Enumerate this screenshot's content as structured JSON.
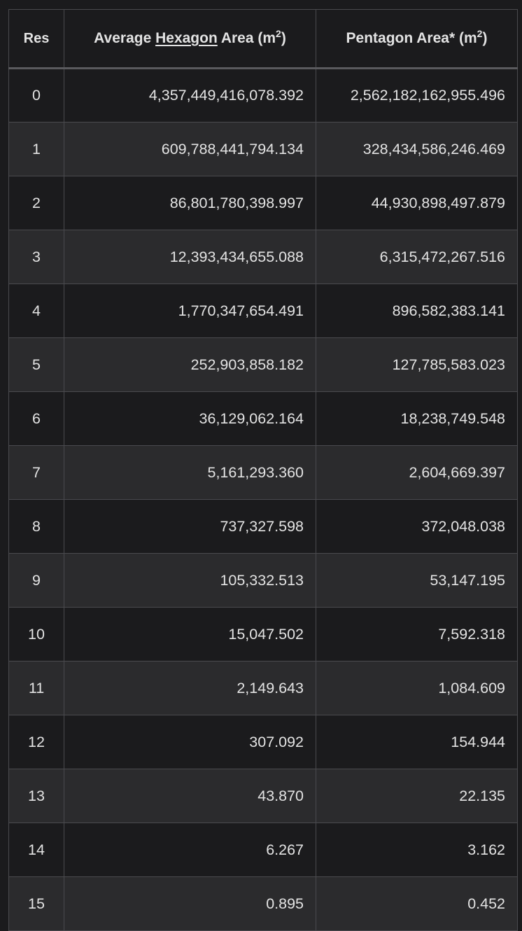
{
  "header": {
    "res": "Res",
    "hex_prefix": "Average ",
    "hex_word": "Hexagon",
    "hex_suffix": " Area (m",
    "pent_prefix": "Pentagon Area* (m",
    "sup": "2",
    "close": ")"
  },
  "rows": [
    {
      "res": "0",
      "hex": "4,357,449,416,078.392",
      "pent": "2,562,182,162,955.496"
    },
    {
      "res": "1",
      "hex": "609,788,441,794.134",
      "pent": "328,434,586,246.469"
    },
    {
      "res": "2",
      "hex": "86,801,780,398.997",
      "pent": "44,930,898,497.879"
    },
    {
      "res": "3",
      "hex": "12,393,434,655.088",
      "pent": "6,315,472,267.516"
    },
    {
      "res": "4",
      "hex": "1,770,347,654.491",
      "pent": "896,582,383.141"
    },
    {
      "res": "5",
      "hex": "252,903,858.182",
      "pent": "127,785,583.023"
    },
    {
      "res": "6",
      "hex": "36,129,062.164",
      "pent": "18,238,749.548"
    },
    {
      "res": "7",
      "hex": "5,161,293.360",
      "pent": "2,604,669.397"
    },
    {
      "res": "8",
      "hex": "737,327.598",
      "pent": "372,048.038"
    },
    {
      "res": "9",
      "hex": "105,332.513",
      "pent": "53,147.195"
    },
    {
      "res": "10",
      "hex": "15,047.502",
      "pent": "7,592.318"
    },
    {
      "res": "11",
      "hex": "2,149.643",
      "pent": "1,084.609"
    },
    {
      "res": "12",
      "hex": "307.092",
      "pent": "154.944"
    },
    {
      "res": "13",
      "hex": "43.870",
      "pent": "22.135"
    },
    {
      "res": "14",
      "hex": "6.267",
      "pent": "3.162"
    },
    {
      "res": "15",
      "hex": "0.895",
      "pent": "0.452"
    }
  ]
}
